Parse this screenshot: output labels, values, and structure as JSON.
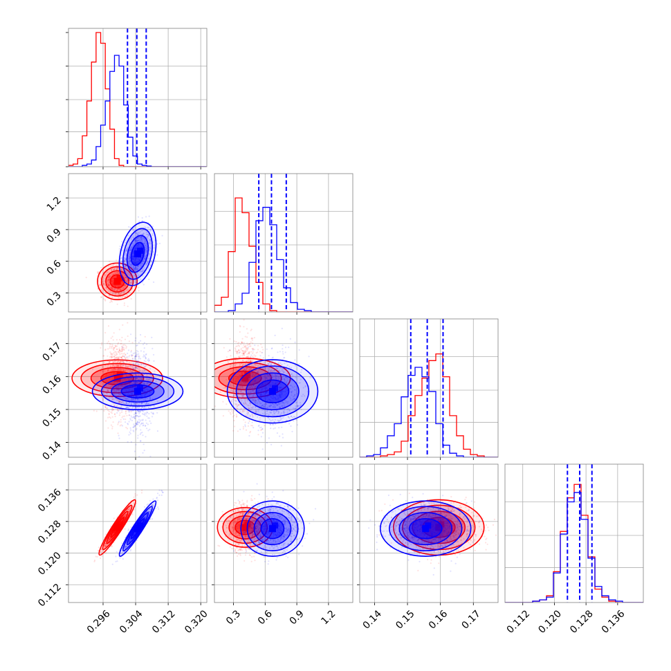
{
  "chart_data": {
    "type": "corner",
    "colors": {
      "red": "#ff0000",
      "blue": "#0000ff"
    },
    "parameters": [
      {
        "id": "p1",
        "range": [
          0.2875,
          0.3215
        ],
        "ticks": [
          "0.296",
          "0.304",
          "0.312",
          "0.320"
        ],
        "tick_values": [
          0.296,
          0.304,
          0.312,
          0.32
        ]
      },
      {
        "id": "p2",
        "range": [
          0.12,
          1.43
        ],
        "ticks": [
          "0.3",
          "0.6",
          "0.9",
          "1.2"
        ],
        "tick_values": [
          0.3,
          0.6,
          0.9,
          1.2
        ]
      },
      {
        "id": "p3",
        "range": [
          0.1355,
          0.1775
        ],
        "ticks": [
          "0.14",
          "0.15",
          "0.16",
          "0.17"
        ],
        "tick_values": [
          0.14,
          0.15,
          0.16,
          0.17
        ]
      },
      {
        "id": "p4",
        "range": [
          0.1075,
          0.1425
        ],
        "ticks": [
          "0.112",
          "0.120",
          "0.128",
          "0.136"
        ],
        "tick_values": [
          0.112,
          0.12,
          0.128,
          0.136
        ]
      }
    ],
    "series": [
      {
        "name": "red",
        "color": "#ff0000",
        "mean": [
          0.2995,
          0.41,
          0.1595,
          0.1265
        ],
        "std": [
          0.0018,
          0.075,
          0.0055,
          0.0028
        ],
        "corr": [
          [
            1,
            0,
            0,
            0.95
          ],
          [
            0,
            1,
            0,
            0
          ],
          [
            0,
            0,
            1,
            0
          ],
          [
            0.95,
            0,
            0,
            1
          ]
        ]
      },
      {
        "name": "blue",
        "color": "#0000ff",
        "mean": [
          0.3045,
          0.67,
          0.1555,
          0.1262
        ],
        "std": [
          0.0018,
          0.12,
          0.0055,
          0.0028
        ],
        "corr": [
          [
            1,
            0.3,
            0,
            0.95
          ],
          [
            0.3,
            1,
            0,
            0
          ],
          [
            0,
            0,
            1,
            0
          ],
          [
            0.95,
            0,
            0,
            1
          ]
        ]
      }
    ],
    "histograms": [
      {
        "param": "p1",
        "edges_start": 0.2875,
        "bin_width": 0.00113,
        "red": [
          0.01,
          0.02,
          0.06,
          0.23,
          0.49,
          0.78,
          1.0,
          0.92,
          0.58,
          0.28,
          0.06,
          0.01,
          0,
          0,
          0,
          0,
          0,
          0,
          0,
          0,
          0,
          0,
          0,
          0,
          0,
          0,
          0,
          0,
          0,
          0
        ],
        "blue": [
          0,
          0,
          0,
          0.01,
          0.02,
          0.05,
          0.15,
          0.31,
          0.49,
          0.71,
          0.83,
          0.75,
          0.46,
          0.22,
          0.08,
          0.02,
          0.01,
          0.005,
          0,
          0,
          0,
          0,
          0,
          0,
          0,
          0,
          0,
          0,
          0,
          0
        ]
      },
      {
        "param": "p2",
        "edges_start": 0.12,
        "bin_width": 0.0655,
        "red": [
          0.05,
          0.11,
          0.45,
          0.85,
          0.74,
          0.49,
          0.22,
          0.06,
          0.01,
          0,
          0,
          0,
          0,
          0,
          0,
          0,
          0,
          0,
          0,
          0
        ],
        "blue": [
          0,
          0,
          0.01,
          0.06,
          0.14,
          0.37,
          0.68,
          0.78,
          0.65,
          0.39,
          0.18,
          0.07,
          0.02,
          0.01,
          0,
          0,
          0,
          0,
          0,
          0
        ]
      },
      {
        "param": "p3",
        "edges_start": 0.1355,
        "bin_width": 0.0021,
        "red": [
          0,
          0,
          0,
          0.01,
          0.02,
          0.04,
          0.12,
          0.31,
          0.46,
          0.59,
          0.72,
          0.77,
          0.6,
          0.31,
          0.16,
          0.06,
          0.02,
          0.01,
          0,
          0
        ],
        "blue": [
          0,
          0.01,
          0.02,
          0.07,
          0.16,
          0.25,
          0.45,
          0.61,
          0.67,
          0.6,
          0.49,
          0.25,
          0.09,
          0.03,
          0.01,
          0,
          0,
          0,
          0,
          0
        ]
      },
      {
        "param": "p4",
        "edges_start": 0.1075,
        "bin_width": 0.00175,
        "red": [
          0,
          0,
          0,
          0,
          0.01,
          0.02,
          0.05,
          0.23,
          0.53,
          0.78,
          0.88,
          0.65,
          0.34,
          0.1,
          0.04,
          0.01,
          0,
          0,
          0,
          0
        ],
        "blue": [
          0,
          0,
          0,
          0,
          0.01,
          0.02,
          0.04,
          0.22,
          0.51,
          0.75,
          0.82,
          0.62,
          0.33,
          0.12,
          0.05,
          0.02,
          0.01,
          0,
          0,
          0
        ]
      }
    ],
    "quantile_lines": [
      {
        "param": "p1",
        "color": "#0000ff",
        "values": [
          0.302,
          0.3043,
          0.3066
        ]
      },
      {
        "param": "p2",
        "color": "#0000ff",
        "values": [
          0.54,
          0.66,
          0.8
        ]
      },
      {
        "param": "p3",
        "color": "#0000ff",
        "values": [
          0.151,
          0.156,
          0.1608
        ]
      },
      {
        "param": "p4",
        "color": "#0000ff",
        "values": [
          0.1233,
          0.1264,
          0.1295
        ]
      }
    ]
  }
}
